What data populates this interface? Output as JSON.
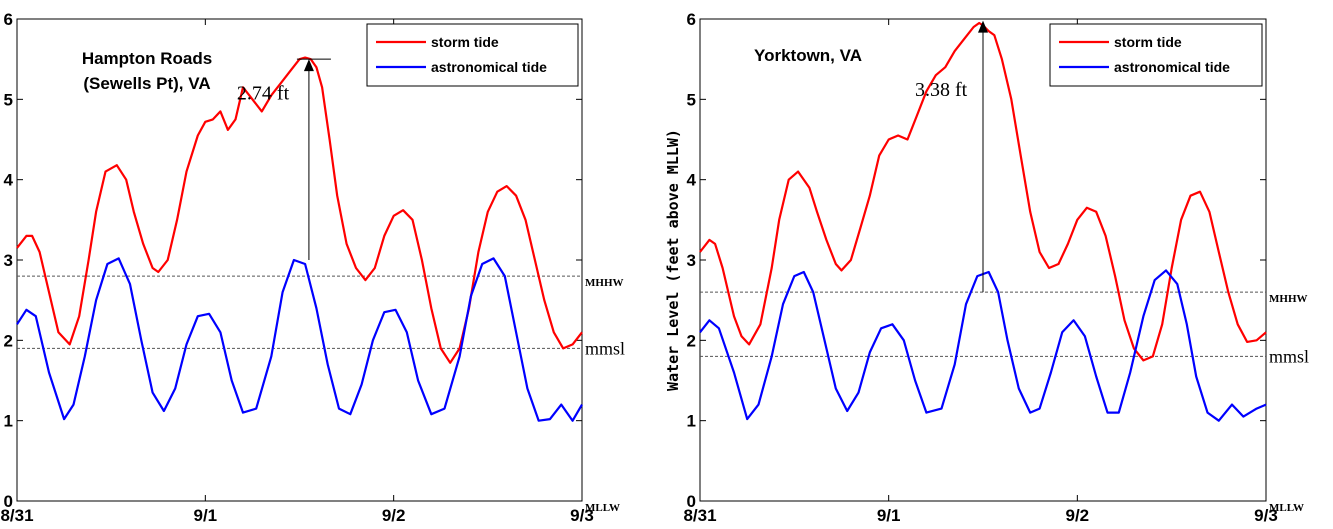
{
  "chart_data": [
    {
      "type": "line",
      "station_lines": [
        "Hampton Roads",
        "(Sewells Pt), VA"
      ],
      "ylabel": "Water Level (feet above MLLW)",
      "xlabel": "",
      "ylim": [
        0,
        6
      ],
      "y_ticks": [
        "0",
        "1",
        "2",
        "3",
        "4",
        "5",
        "6"
      ],
      "xlim": [
        0,
        3
      ],
      "x_tick_values": [
        0,
        1,
        2,
        3
      ],
      "x_ticks": [
        "8/31",
        "9/1",
        "9/2",
        "9/3"
      ],
      "grid": false,
      "legend_position": "top-right",
      "reference_lines": [
        {
          "label": "MHHW",
          "value": 2.8
        },
        {
          "label": "mmsl",
          "value": 1.9
        },
        {
          "label": "MLLW",
          "value": 0
        }
      ],
      "annotation": {
        "text": "2.74 ft",
        "x": 1.55,
        "from": 3.0,
        "to": 5.5
      },
      "series": [
        {
          "name": "storm tide",
          "color": "#ff0000",
          "x": [
            0,
            0.05,
            0.08,
            0.12,
            0.18,
            0.22,
            0.28,
            0.33,
            0.38,
            0.42,
            0.47,
            0.53,
            0.58,
            0.62,
            0.67,
            0.72,
            0.75,
            0.8,
            0.85,
            0.9,
            0.96,
            1.0,
            1.04,
            1.08,
            1.12,
            1.16,
            1.2,
            1.25,
            1.3,
            1.35,
            1.4,
            1.45,
            1.5,
            1.53,
            1.56,
            1.59,
            1.62,
            1.66,
            1.7,
            1.75,
            1.8,
            1.85,
            1.9,
            1.95,
            2.0,
            2.05,
            2.1,
            2.15,
            2.2,
            2.25,
            2.3,
            2.35,
            2.4,
            2.45,
            2.5,
            2.55,
            2.6,
            2.65,
            2.7,
            2.75,
            2.8,
            2.85,
            2.9,
            2.95,
            3.0
          ],
          "values": [
            3.15,
            3.3,
            3.3,
            3.1,
            2.5,
            2.1,
            1.95,
            2.3,
            3.0,
            3.6,
            4.1,
            4.18,
            4.0,
            3.6,
            3.2,
            2.9,
            2.85,
            3.0,
            3.5,
            4.1,
            4.55,
            4.72,
            4.75,
            4.85,
            4.62,
            4.75,
            5.15,
            5.0,
            4.85,
            5.05,
            5.2,
            5.35,
            5.5,
            5.52,
            5.5,
            5.4,
            5.15,
            4.5,
            3.8,
            3.2,
            2.9,
            2.75,
            2.9,
            3.3,
            3.55,
            3.62,
            3.5,
            3.0,
            2.4,
            1.9,
            1.72,
            1.9,
            2.4,
            3.1,
            3.6,
            3.85,
            3.92,
            3.8,
            3.5,
            3.0,
            2.5,
            2.1,
            1.9,
            1.95,
            2.1
          ]
        },
        {
          "name": "astronomical tide",
          "color": "#0000ff",
          "x": [
            0,
            0.05,
            0.1,
            0.17,
            0.25,
            0.3,
            0.36,
            0.42,
            0.48,
            0.54,
            0.6,
            0.66,
            0.72,
            0.78,
            0.84,
            0.9,
            0.96,
            1.02,
            1.08,
            1.14,
            1.2,
            1.27,
            1.35,
            1.41,
            1.47,
            1.53,
            1.59,
            1.65,
            1.71,
            1.77,
            1.83,
            1.89,
            1.95,
            2.01,
            2.07,
            2.13,
            2.2,
            2.27,
            2.35,
            2.41,
            2.47,
            2.53,
            2.59,
            2.65,
            2.71,
            2.77,
            2.83,
            2.89,
            2.95,
            3.0
          ],
          "values": [
            2.2,
            2.38,
            2.3,
            1.6,
            1.02,
            1.2,
            1.8,
            2.5,
            2.95,
            3.02,
            2.7,
            2.0,
            1.35,
            1.12,
            1.4,
            1.95,
            2.3,
            2.33,
            2.1,
            1.5,
            1.1,
            1.15,
            1.8,
            2.6,
            3.0,
            2.95,
            2.4,
            1.7,
            1.15,
            1.08,
            1.45,
            2.0,
            2.35,
            2.38,
            2.1,
            1.5,
            1.08,
            1.15,
            1.8,
            2.55,
            2.95,
            3.02,
            2.8,
            2.1,
            1.4,
            1.0,
            1.02,
            1.2,
            1.0,
            1.2
          ]
        }
      ]
    },
    {
      "type": "line",
      "station_lines": [
        "Yorktown, VA"
      ],
      "ylabel": "Water Level (feet above MLLW)",
      "xlabel": "",
      "ylim": [
        0,
        6
      ],
      "y_ticks": [
        "0",
        "1",
        "2",
        "3",
        "4",
        "5",
        "6"
      ],
      "xlim": [
        0,
        3
      ],
      "x_tick_values": [
        0,
        1,
        2,
        3
      ],
      "x_ticks": [
        "8/31",
        "9/1",
        "9/2",
        "9/3"
      ],
      "grid": false,
      "legend_position": "top-right",
      "reference_lines": [
        {
          "label": "MHHW",
          "value": 2.6
        },
        {
          "label": "mmsl",
          "value": 1.8
        },
        {
          "label": "MLLW",
          "value": 0
        }
      ],
      "annotation": {
        "text": "3.38 ft",
        "x": 1.5,
        "from": 2.6,
        "to": 5.98
      },
      "series": [
        {
          "name": "storm tide",
          "color": "#ff0000",
          "x": [
            0,
            0.05,
            0.08,
            0.12,
            0.18,
            0.22,
            0.26,
            0.32,
            0.38,
            0.42,
            0.47,
            0.52,
            0.58,
            0.62,
            0.67,
            0.72,
            0.75,
            0.8,
            0.85,
            0.9,
            0.95,
            1.0,
            1.05,
            1.1,
            1.15,
            1.2,
            1.25,
            1.3,
            1.35,
            1.4,
            1.45,
            1.48,
            1.5,
            1.53,
            1.56,
            1.6,
            1.65,
            1.7,
            1.75,
            1.8,
            1.85,
            1.9,
            1.95,
            2.0,
            2.05,
            2.1,
            2.15,
            2.2,
            2.25,
            2.3,
            2.35,
            2.4,
            2.45,
            2.5,
            2.55,
            2.6,
            2.65,
            2.7,
            2.75,
            2.8,
            2.85,
            2.9,
            2.95,
            3.0
          ],
          "values": [
            3.1,
            3.25,
            3.2,
            2.9,
            2.3,
            2.05,
            1.95,
            2.2,
            2.9,
            3.5,
            4.0,
            4.1,
            3.9,
            3.6,
            3.25,
            2.95,
            2.87,
            3.0,
            3.4,
            3.8,
            4.3,
            4.5,
            4.55,
            4.5,
            4.8,
            5.1,
            5.3,
            5.4,
            5.6,
            5.75,
            5.9,
            5.95,
            5.92,
            5.85,
            5.8,
            5.5,
            5.0,
            4.3,
            3.6,
            3.1,
            2.9,
            2.95,
            3.2,
            3.5,
            3.65,
            3.6,
            3.3,
            2.8,
            2.25,
            1.9,
            1.75,
            1.8,
            2.2,
            2.9,
            3.5,
            3.8,
            3.85,
            3.6,
            3.1,
            2.6,
            2.2,
            1.98,
            2.0,
            2.1
          ]
        },
        {
          "name": "astronomical tide",
          "color": "#0000ff",
          "x": [
            0,
            0.05,
            0.1,
            0.18,
            0.25,
            0.31,
            0.38,
            0.44,
            0.5,
            0.55,
            0.6,
            0.66,
            0.72,
            0.78,
            0.84,
            0.9,
            0.96,
            1.02,
            1.08,
            1.14,
            1.2,
            1.28,
            1.35,
            1.41,
            1.47,
            1.53,
            1.58,
            1.63,
            1.69,
            1.75,
            1.8,
            1.86,
            1.92,
            1.98,
            2.04,
            2.1,
            2.16,
            2.22,
            2.28,
            2.35,
            2.41,
            2.47,
            2.53,
            2.58,
            2.63,
            2.69,
            2.75,
            2.82,
            2.88,
            2.95,
            3.0
          ],
          "values": [
            2.1,
            2.25,
            2.15,
            1.6,
            1.02,
            1.2,
            1.8,
            2.45,
            2.8,
            2.85,
            2.6,
            2.0,
            1.4,
            1.12,
            1.35,
            1.85,
            2.15,
            2.2,
            2.0,
            1.5,
            1.1,
            1.15,
            1.7,
            2.45,
            2.8,
            2.85,
            2.6,
            2.0,
            1.4,
            1.1,
            1.15,
            1.6,
            2.1,
            2.25,
            2.05,
            1.55,
            1.1,
            1.1,
            1.6,
            2.3,
            2.75,
            2.87,
            2.7,
            2.2,
            1.55,
            1.1,
            1.0,
            1.2,
            1.05,
            1.15,
            1.2
          ]
        }
      ]
    }
  ]
}
